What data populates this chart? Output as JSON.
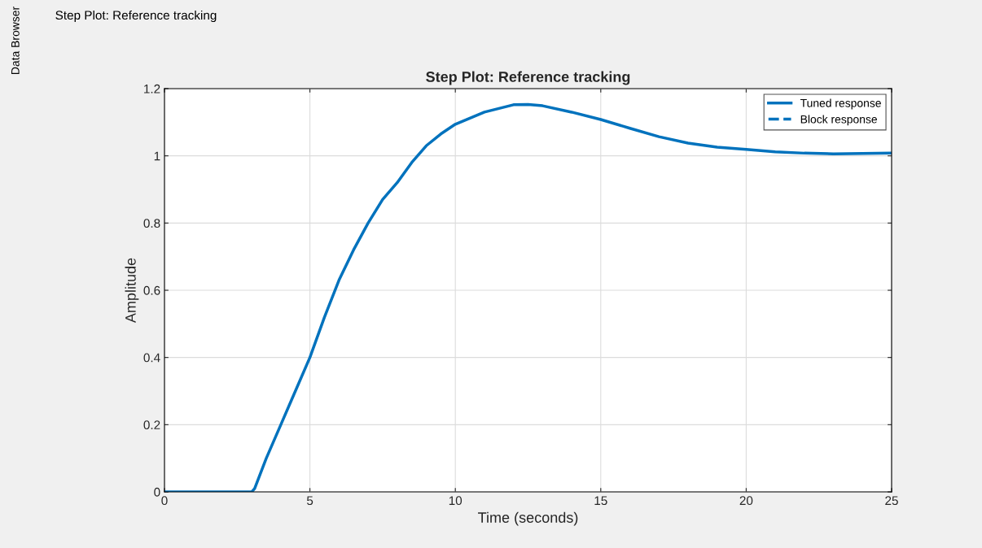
{
  "chart_data": {
    "type": "line",
    "title": "Step Plot: Reference tracking",
    "xlabel": "Time (seconds)",
    "ylabel": "Amplitude",
    "annotations": [
      "Data Browser",
      "Step Plot: Reference tracking"
    ],
    "xlim": [
      0,
      25
    ],
    "ylim": [
      0,
      1.2
    ],
    "xticks": [
      0,
      5,
      10,
      15,
      20,
      25
    ],
    "yticks": [
      0,
      0.2,
      0.4,
      0.6,
      0.8,
      1,
      1.2
    ],
    "grid": true,
    "legend": "top right",
    "marker": "none",
    "series": [
      {
        "name": "Tuned response",
        "color": "#0072bd",
        "line_style": "solid",
        "x": [
          0,
          1,
          2,
          3,
          3.1,
          3.5,
          4,
          4.5,
          5,
          5.5,
          6,
          6.5,
          7,
          7.5,
          8,
          8.5,
          9,
          9.5,
          10,
          11,
          12,
          12.5,
          13,
          14,
          15,
          16,
          17,
          18,
          19,
          20,
          21,
          22,
          23,
          24,
          25
        ],
        "values": [
          0,
          0,
          0,
          0,
          0.01,
          0.1,
          0.2,
          0.3,
          0.4,
          0.52,
          0.63,
          0.72,
          0.8,
          0.87,
          0.92,
          0.98,
          1.03,
          1.065,
          1.094,
          1.13,
          1.152,
          1.153,
          1.149,
          1.13,
          1.108,
          1.082,
          1.057,
          1.038,
          1.026,
          1.019,
          1.012,
          1.008,
          1.006,
          1.007,
          1.008
        ]
      },
      {
        "name": "Block response",
        "color": "#0072bd",
        "line_style": "dashed"
      }
    ]
  }
}
